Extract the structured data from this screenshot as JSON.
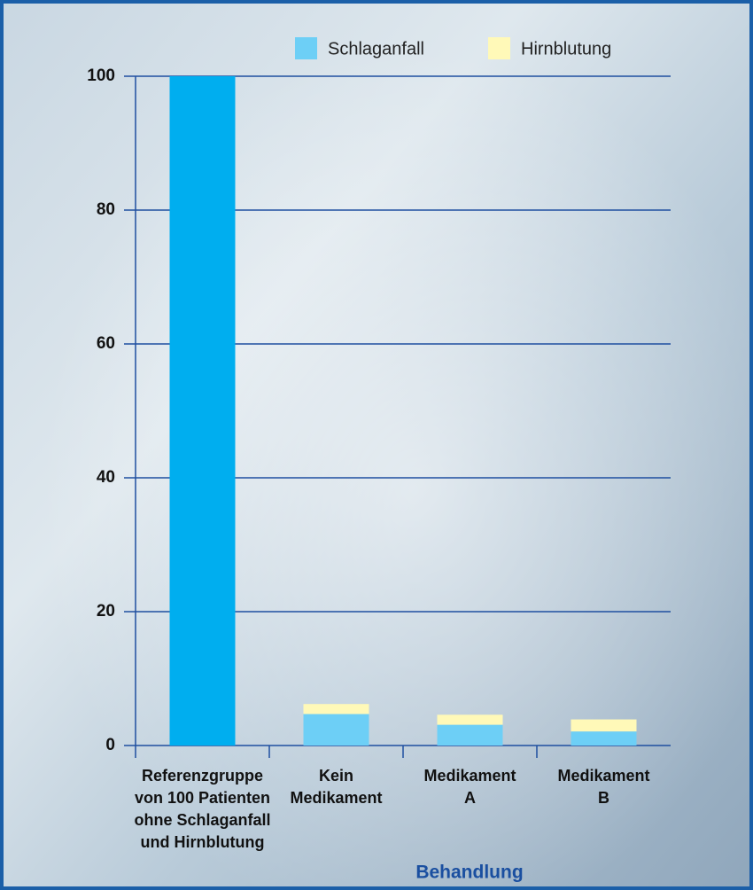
{
  "chart_data": {
    "type": "stacked-bar",
    "categories": [
      [
        "Referenzgruppe",
        "von 100 Patienten",
        "ohne Schlaganfall",
        "und Hirnblutung"
      ],
      [
        "Kein",
        "Medikament"
      ],
      [
        "Medikament",
        "A"
      ],
      [
        "Medikament",
        "B"
      ]
    ],
    "series": [
      {
        "name": "Schlaganfall",
        "color": "#6dcff6",
        "values": [
          100,
          4.7,
          3.1,
          2.1
        ],
        "bar_colors": [
          "#00aeef",
          "#6dcff6",
          "#6dcff6",
          "#6dcff6"
        ]
      },
      {
        "name": "Hirnblutung",
        "color": "#fff9b8",
        "values": [
          null,
          1.5,
          1.5,
          1.8
        ]
      }
    ],
    "ylim": [
      0,
      100
    ],
    "yticks": [
      0,
      20,
      40,
      60,
      80,
      100
    ],
    "grid": true,
    "grid_color": "#1f4fa0",
    "xlabel": "Behandlung",
    "xlabel_color": "#1a4fa0",
    "legend": "top"
  }
}
